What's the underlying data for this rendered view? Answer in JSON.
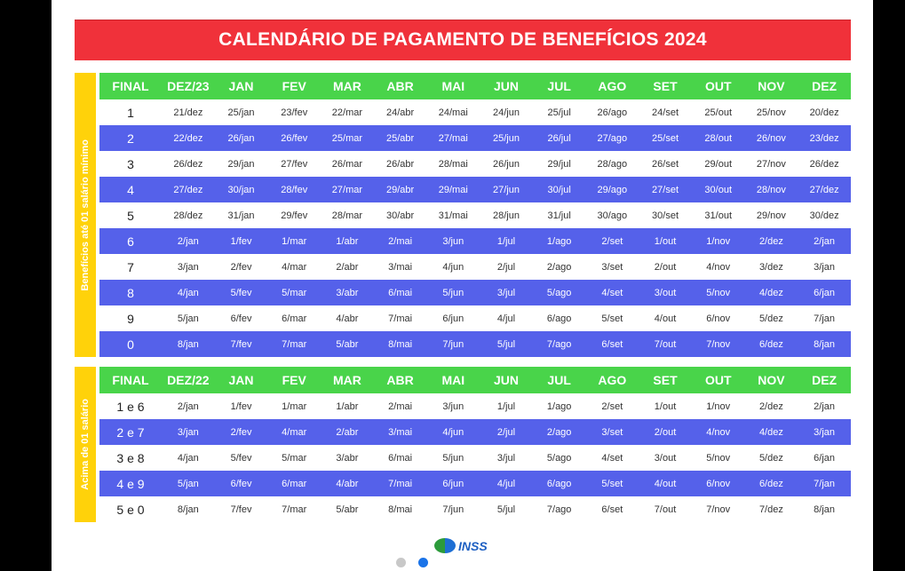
{
  "title": "CALENDÁRIO DE PAGAMENTO DE BENEFÍCIOS 2024",
  "colors": {
    "title_bg": "#f0313a",
    "header_bg": "#49d44a",
    "blue_row": "#5561ea",
    "side_label_bg": "#ffd20a",
    "dot_active": "#1a73e8"
  },
  "logo": {
    "text": "INSS",
    "icon": "inss-logo-icon"
  },
  "sections": [
    {
      "side_label": "Benefícios até 01 salário mínimo",
      "headers": [
        "FINAL",
        "DEZ/23",
        "JAN",
        "FEV",
        "MAR",
        "ABR",
        "MAI",
        "JUN",
        "JUL",
        "AGO",
        "SET",
        "OUT",
        "NOV",
        "DEZ"
      ],
      "rows": [
        [
          "1",
          "21/dez",
          "25/jan",
          "23/fev",
          "22/mar",
          "24/abr",
          "24/mai",
          "24/jun",
          "25/jul",
          "26/ago",
          "24/set",
          "25/out",
          "25/nov",
          "20/dez"
        ],
        [
          "2",
          "22/dez",
          "26/jan",
          "26/fev",
          "25/mar",
          "25/abr",
          "27/mai",
          "25/jun",
          "26/jul",
          "27/ago",
          "25/set",
          "28/out",
          "26/nov",
          "23/dez"
        ],
        [
          "3",
          "26/dez",
          "29/jan",
          "27/fev",
          "26/mar",
          "26/abr",
          "28/mai",
          "26/jun",
          "29/jul",
          "28/ago",
          "26/set",
          "29/out",
          "27/nov",
          "26/dez"
        ],
        [
          "4",
          "27/dez",
          "30/jan",
          "28/fev",
          "27/mar",
          "29/abr",
          "29/mai",
          "27/jun",
          "30/jul",
          "29/ago",
          "27/set",
          "30/out",
          "28/nov",
          "27/dez"
        ],
        [
          "5",
          "28/dez",
          "31/jan",
          "29/fev",
          "28/mar",
          "30/abr",
          "31/mai",
          "28/jun",
          "31/jul",
          "30/ago",
          "30/set",
          "31/out",
          "29/nov",
          "30/dez"
        ],
        [
          "6",
          "2/jan",
          "1/fev",
          "1/mar",
          "1/abr",
          "2/mai",
          "3/jun",
          "1/jul",
          "1/ago",
          "2/set",
          "1/out",
          "1/nov",
          "2/dez",
          "2/jan"
        ],
        [
          "7",
          "3/jan",
          "2/fev",
          "4/mar",
          "2/abr",
          "3/mai",
          "4/jun",
          "2/jul",
          "2/ago",
          "3/set",
          "2/out",
          "4/nov",
          "3/dez",
          "3/jan"
        ],
        [
          "8",
          "4/jan",
          "5/fev",
          "5/mar",
          "3/abr",
          "6/mai",
          "5/jun",
          "3/jul",
          "5/ago",
          "4/set",
          "3/out",
          "5/nov",
          "4/dez",
          "6/jan"
        ],
        [
          "9",
          "5/jan",
          "6/fev",
          "6/mar",
          "4/abr",
          "7/mai",
          "6/jun",
          "4/jul",
          "6/ago",
          "5/set",
          "4/out",
          "6/nov",
          "5/dez",
          "7/jan"
        ],
        [
          "0",
          "8/jan",
          "7/fev",
          "7/mar",
          "5/abr",
          "8/mai",
          "7/jun",
          "5/jul",
          "7/ago",
          "6/set",
          "7/out",
          "7/nov",
          "6/dez",
          "8/jan"
        ]
      ]
    },
    {
      "side_label": "Acima de 01 salário",
      "headers": [
        "FINAL",
        "DEZ/22",
        "JAN",
        "FEV",
        "MAR",
        "ABR",
        "MAI",
        "JUN",
        "JUL",
        "AGO",
        "SET",
        "OUT",
        "NOV",
        "DEZ"
      ],
      "rows": [
        [
          "1 e 6",
          "2/jan",
          "1/fev",
          "1/mar",
          "1/abr",
          "2/mai",
          "3/jun",
          "1/jul",
          "1/ago",
          "2/set",
          "1/out",
          "1/nov",
          "2/dez",
          "2/jan"
        ],
        [
          "2 e 7",
          "3/jan",
          "2/fev",
          "4/mar",
          "2/abr",
          "3/mai",
          "4/jun",
          "2/jul",
          "2/ago",
          "3/set",
          "2/out",
          "4/nov",
          "4/dez",
          "3/jan"
        ],
        [
          "3 e 8",
          "4/jan",
          "5/fev",
          "5/mar",
          "3/abr",
          "6/mai",
          "5/jun",
          "3/jul",
          "5/ago",
          "4/set",
          "3/out",
          "5/nov",
          "5/dez",
          "6/jan"
        ],
        [
          "4 e 9",
          "5/jan",
          "6/fev",
          "6/mar",
          "4/abr",
          "7/mai",
          "6/jun",
          "4/jul",
          "6/ago",
          "5/set",
          "4/out",
          "6/nov",
          "6/dez",
          "7/jan"
        ],
        [
          "5 e 0",
          "8/jan",
          "7/fev",
          "7/mar",
          "5/abr",
          "8/mai",
          "7/jun",
          "5/jul",
          "7/ago",
          "6/set",
          "7/out",
          "7/nov",
          "7/dez",
          "8/jan"
        ]
      ]
    }
  ]
}
